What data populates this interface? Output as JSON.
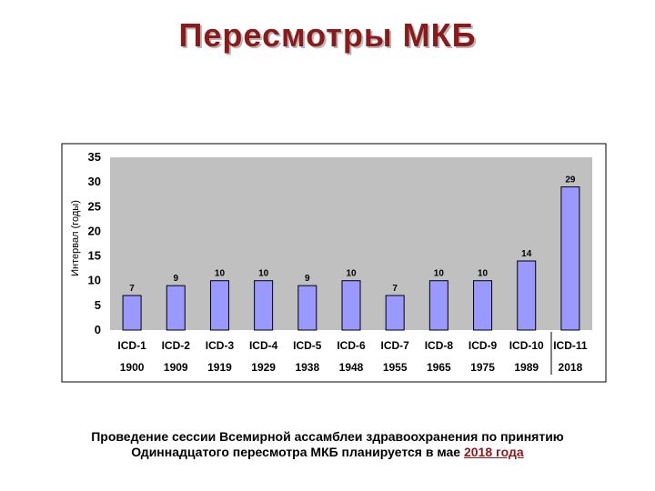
{
  "slide": {
    "title": "Пересмотры МКБ",
    "caption_line1": "Проведение сессии Всемирной ассамблеи здравоохранения по принятию",
    "caption_line2_prefix": "Одиннадцатого пересмотра МКБ планируется в мае ",
    "caption_link": "2018 года"
  },
  "colors": {
    "bar": "#9999ff",
    "plot_bg": "#c0c0c0",
    "title": "#8b1a1a"
  },
  "chart_data": {
    "type": "bar",
    "title": "",
    "xlabel": "",
    "ylabel": "Интервал (годы)",
    "ylim": [
      0,
      35
    ],
    "yticks": [
      "0",
      "5",
      "10",
      "15",
      "20",
      "25",
      "30",
      "35"
    ],
    "grid": false,
    "categories": [
      "ICD-1",
      "ICD-2",
      "ICD-3",
      "ICD-4",
      "ICD-5",
      "ICD-6",
      "ICD-7",
      "ICD-8",
      "ICD-9",
      "ICD-10",
      "ICD-11"
    ],
    "years": [
      "1900",
      "1909",
      "1919",
      "1929",
      "1938",
      "1948",
      "1955",
      "1965",
      "1975",
      "1989",
      "2018"
    ],
    "values": [
      7,
      9,
      10,
      10,
      9,
      10,
      7,
      10,
      10,
      14,
      29
    ],
    "data_labels": [
      "7",
      "9",
      "10",
      "10",
      "9",
      "10",
      "7",
      "10",
      "10",
      "14",
      "29"
    ]
  }
}
